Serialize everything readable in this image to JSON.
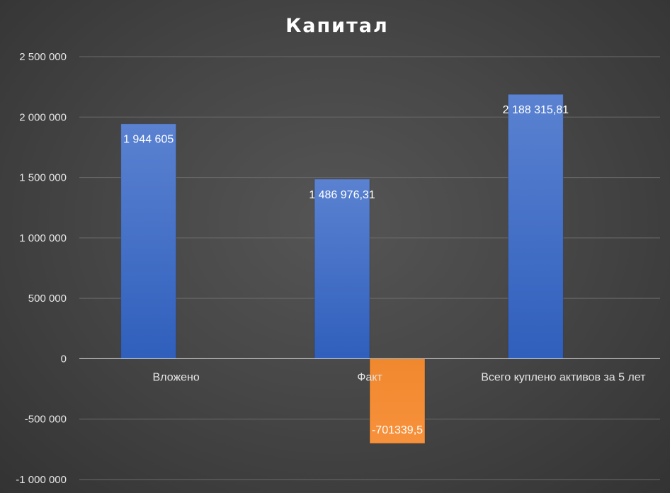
{
  "chart_data": {
    "type": "bar",
    "title": "Капитал",
    "categories": [
      "Вложено",
      "Факт",
      "Всего куплено активов за 5 лет"
    ],
    "series": [
      {
        "values": [
          1944605,
          1486976.31,
          2188315.81
        ],
        "labels": [
          "1 944 605",
          "1 486 976,31",
          "2 188 315,81"
        ],
        "color": "#4472c4"
      },
      {
        "values": [
          null,
          -701339.5,
          null
        ],
        "labels": [
          null,
          "-701339,5",
          null
        ],
        "color": "#ed7d31"
      }
    ],
    "ylim": [
      -1000000,
      2500000
    ],
    "yticks": [
      2500000,
      2000000,
      1500000,
      1000000,
      500000,
      0,
      -500000,
      -1000000
    ],
    "ytick_labels": [
      "2 500 000",
      "2 000 000",
      "1 500 000",
      "1 000 000",
      "500 000",
      "0",
      "-500 000",
      "-1 000 000"
    ],
    "grid": true,
    "legend": "none"
  }
}
